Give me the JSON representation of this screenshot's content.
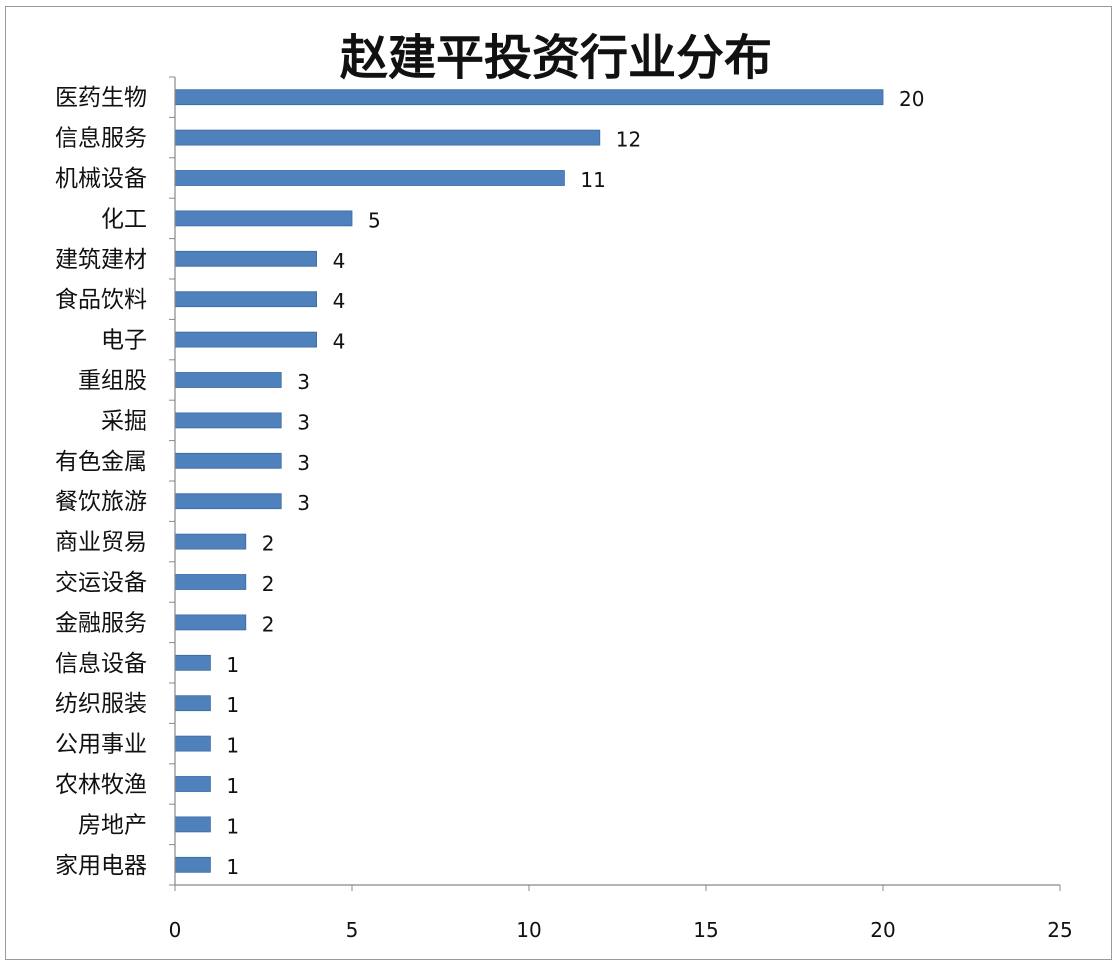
{
  "chart_data": {
    "type": "bar",
    "orientation": "horizontal",
    "title": "赵建平投资行业分布",
    "categories": [
      "医药生物",
      "信息服务",
      "机械设备",
      "化工",
      "建筑建材",
      "食品饮料",
      "电子",
      "重组股",
      "采掘",
      "有色金属",
      "餐饮旅游",
      "商业贸易",
      "交运设备",
      "金融服务",
      "信息设备",
      "纺织服装",
      "公用事业",
      "农林牧渔",
      "房地产",
      "家用电器"
    ],
    "values": [
      20,
      12,
      11,
      5,
      4,
      4,
      4,
      3,
      3,
      3,
      3,
      2,
      2,
      2,
      1,
      1,
      1,
      1,
      1,
      1
    ],
    "xlim": [
      0,
      25
    ],
    "xticks": [
      0,
      5,
      10,
      15,
      20,
      25
    ],
    "xlabel": "",
    "ylabel": "",
    "grid": false,
    "legend": "none",
    "bar_color": "#4f81bd"
  }
}
